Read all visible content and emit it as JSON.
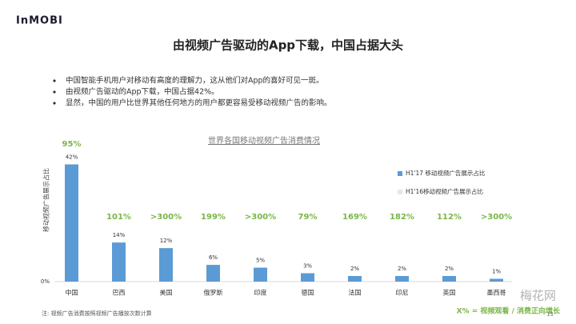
{
  "logo": "InMOBI",
  "title": "由视频广告驱动的App下载，中国占据大头",
  "bullets": [
    "中国智能手机用户对移动有高度的理解力，这从他们对App的喜好可见一斑。",
    "由视频广告驱动的App下载，中国占据42%。",
    "显然，中国的用户比世界其他任何地方的用户都更容易受移动视频广告的影响。"
  ],
  "chart_data": {
    "type": "bar",
    "title": "世界各国移动视频广告消费情况",
    "y_label": "移动视频广告展示占比",
    "categories": [
      "中国",
      "巴西",
      "美国",
      "俄罗斯",
      "印度",
      "德国",
      "法国",
      "印尼",
      "英国",
      "墨西哥"
    ],
    "series": [
      {
        "name": "H1'17 移动视频广告展示占比",
        "color": "#5b9bd5",
        "values": [
          42,
          14,
          12,
          6,
          5,
          3,
          2,
          2,
          2,
          1
        ],
        "value_labels": [
          "42%",
          "14%",
          "12%",
          "6%",
          "5%",
          "3%",
          "2%",
          "2%",
          "2%",
          "1%"
        ]
      },
      {
        "name": "H1'16移动视频广告展示占比",
        "color": "#e7e6e6",
        "values": [
          null,
          null,
          null,
          null,
          null,
          null,
          null,
          null,
          null,
          null
        ]
      }
    ],
    "growth_labels": [
      "95%",
      "101%",
      ">300%",
      "199%",
      ">300%",
      "79%",
      "169%",
      "182%",
      "112%",
      ">300%"
    ],
    "growth_color": "#7ab648",
    "ylim": [
      0,
      45
    ],
    "yticks": [
      {
        "value": 0,
        "label": "0%"
      }
    ],
    "grid": false
  },
  "growth_note": "X% = 视频观看 / 消费正向增长",
  "footnote": "注: 视频广告消费按照视频广告播放次数计算",
  "page_number": "13",
  "watermark": "梅花网"
}
